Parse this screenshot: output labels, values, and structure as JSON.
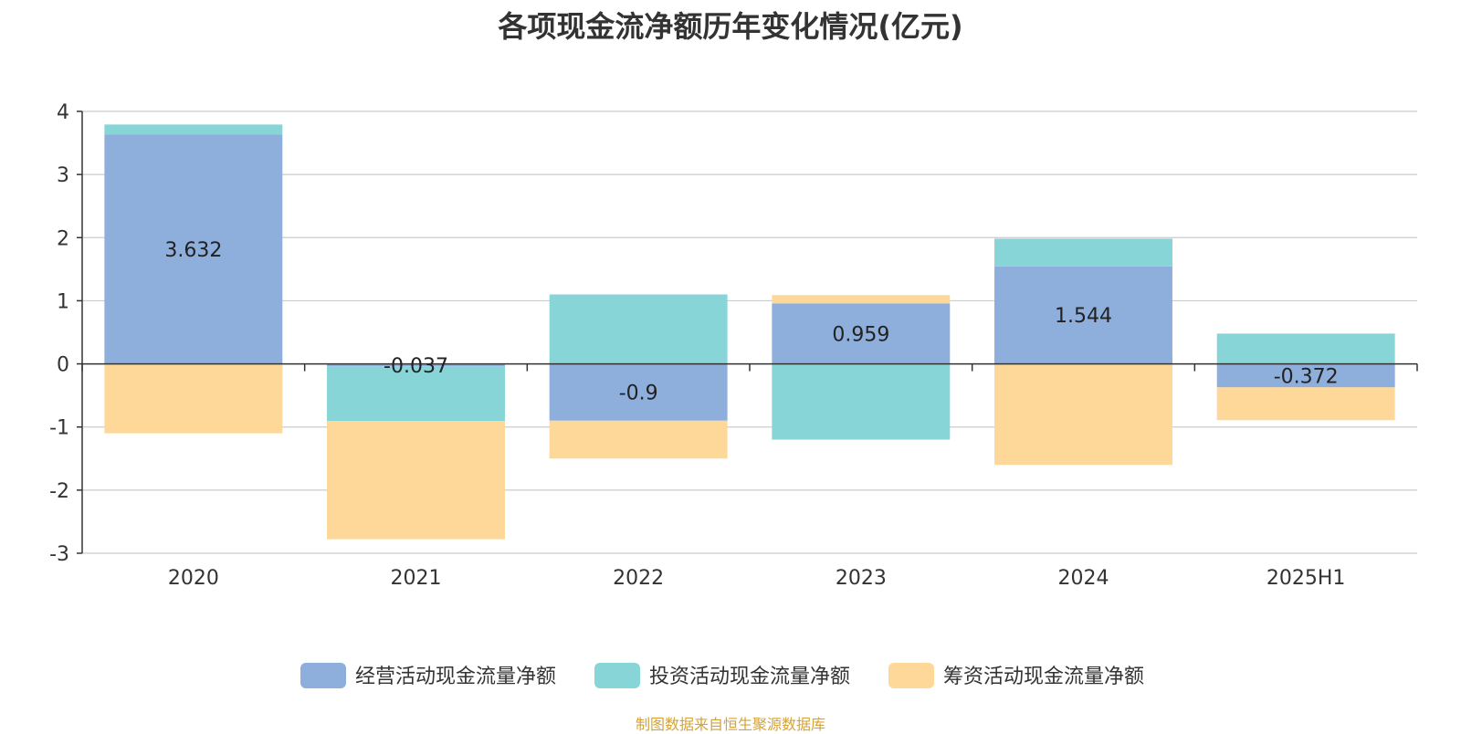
{
  "chart_data": {
    "type": "bar",
    "stacked": true,
    "title": "各项现金流净额历年变化情况(亿元)",
    "categories": [
      "2020",
      "2021",
      "2022",
      "2023",
      "2024",
      "2025H1"
    ],
    "series": [
      {
        "name": "经营活动现金流量净额",
        "color": "#8eaedb",
        "values": [
          3.632,
          -0.037,
          -0.9,
          0.959,
          1.544,
          -0.372
        ],
        "value_labels": [
          "3.632",
          "-0.037",
          "-0.9",
          "0.959",
          "1.544",
          "-0.372"
        ]
      },
      {
        "name": "投资活动现金流量净额",
        "color": "#88d5d8",
        "values": [
          0.16,
          -0.87,
          1.1,
          -1.2,
          0.44,
          0.48
        ]
      },
      {
        "name": "筹资活动现金流量净额",
        "color": "#fed898",
        "values": [
          -1.1,
          -1.87,
          -0.6,
          0.13,
          -1.6,
          -0.52
        ]
      }
    ],
    "y_ticks": [
      "4",
      "3",
      "2",
      "1",
      "0",
      "-1",
      "-2",
      "-3"
    ],
    "ylim": [
      -3,
      4
    ],
    "grid": true,
    "legend_position": "bottom"
  },
  "source_note": "制图数据来自恒生聚源数据库"
}
